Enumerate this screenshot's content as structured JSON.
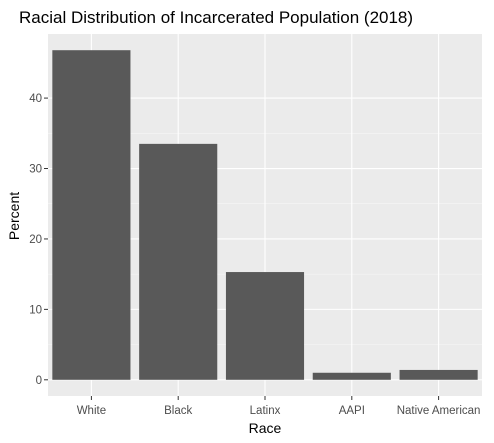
{
  "chart_data": {
    "type": "bar",
    "title": "Racial Distribution of Incarcerated Population (2018)",
    "xlabel": "Race",
    "ylabel": "Percent",
    "categories": [
      "White",
      "Black",
      "Latinx",
      "AAPI",
      "Native American"
    ],
    "values": [
      46.8,
      33.5,
      15.3,
      1.0,
      1.4
    ],
    "ylim": [
      -2.3,
      49.1
    ],
    "yticks": [
      0,
      10,
      20,
      30,
      40
    ],
    "grid": true,
    "legend": "none",
    "colors": {
      "panel": "#ebebeb",
      "bar": "#595959",
      "grid_major": "#ffffff",
      "grid_minor": "#f5f5f5",
      "tick_text": "#4d4d4d",
      "tick_mark": "#333333"
    }
  }
}
